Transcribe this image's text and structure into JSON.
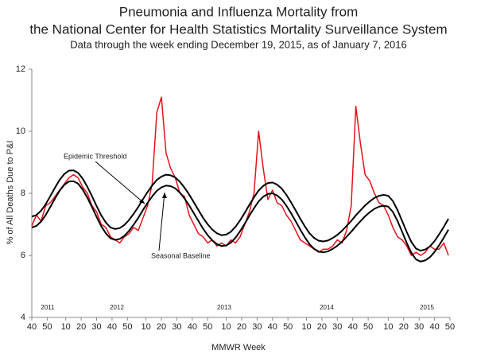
{
  "chart_data": {
    "type": "line",
    "title": [
      "Pneumonia and Influenza Mortality from",
      "the National Center for Health Statistics Mortality Surveillance System"
    ],
    "subtitle": "Data through the week ending December 19, 2015, as of January 7, 2016",
    "y_label": "% of All Deaths Due to P&I",
    "x_label": "MMWR Week",
    "xlim": [
      0,
      271
    ],
    "xticks": [
      {
        "value": 0,
        "label": "40"
      },
      {
        "value": 10,
        "label": "50"
      },
      {
        "value": 22,
        "label": "10"
      },
      {
        "value": 32,
        "label": "20"
      },
      {
        "value": 42,
        "label": "30"
      },
      {
        "value": 52,
        "label": "40"
      },
      {
        "value": 62,
        "label": "50"
      },
      {
        "value": 74,
        "label": "10"
      },
      {
        "value": 84,
        "label": "20"
      },
      {
        "value": 94,
        "label": "30"
      },
      {
        "value": 104,
        "label": "40"
      },
      {
        "value": 114,
        "label": "50"
      },
      {
        "value": 126,
        "label": "10"
      },
      {
        "value": 136,
        "label": "20"
      },
      {
        "value": 146,
        "label": "30"
      },
      {
        "value": 156,
        "label": "40"
      },
      {
        "value": 166,
        "label": "50"
      },
      {
        "value": 178,
        "label": "10"
      },
      {
        "value": 188,
        "label": "20"
      },
      {
        "value": 198,
        "label": "30"
      },
      {
        "value": 208,
        "label": "40"
      },
      {
        "value": 218,
        "label": "50"
      },
      {
        "value": 231,
        "label": "10"
      },
      {
        "value": 241,
        "label": "20"
      },
      {
        "value": 251,
        "label": "30"
      },
      {
        "value": 261,
        "label": "40"
      },
      {
        "value": 271,
        "label": "50"
      }
    ],
    "ylim": [
      4,
      12
    ],
    "yticks": [
      4,
      6,
      8,
      10,
      12
    ],
    "grid": false,
    "years": [
      "2011",
      "2012",
      "2013",
      "2014",
      "2015"
    ],
    "x": [
      0,
      3,
      6,
      9,
      12,
      15,
      18,
      21,
      24,
      27,
      30,
      33,
      36,
      39,
      42,
      45,
      48,
      51,
      54,
      57,
      60,
      63,
      66,
      69,
      72,
      75,
      78,
      81,
      84,
      87,
      90,
      93,
      96,
      99,
      102,
      105,
      108,
      111,
      114,
      117,
      120,
      123,
      126,
      129,
      132,
      135,
      138,
      141,
      144,
      147,
      150,
      153,
      156,
      159,
      162,
      165,
      168,
      171,
      174,
      177,
      180,
      183,
      186,
      189,
      192,
      195,
      198,
      201,
      204,
      207,
      210,
      213,
      216,
      219,
      222,
      225,
      228,
      231,
      234,
      237,
      240,
      243,
      246,
      249,
      252,
      255,
      258,
      261,
      264,
      267,
      270
    ],
    "series": [
      {
        "color": "#e8101a",
        "values": [
          6.95,
          7.3,
          7.1,
          7.6,
          7.7,
          7.9,
          8.1,
          8.3,
          8.5,
          8.6,
          8.5,
          8.2,
          8.0,
          7.6,
          7.4,
          7.0,
          6.9,
          6.6,
          6.5,
          6.4,
          6.6,
          6.7,
          6.9,
          6.8,
          7.2,
          7.6,
          8.3,
          10.6,
          11.1,
          9.3,
          8.8,
          8.5,
          8.0,
          7.9,
          7.3,
          7.0,
          6.7,
          6.6,
          6.4,
          6.5,
          6.3,
          6.4,
          6.3,
          6.5,
          6.4,
          6.6,
          7.0,
          7.4,
          8.0,
          10.0,
          8.8,
          7.8,
          8.1,
          7.7,
          7.6,
          7.3,
          7.1,
          6.8,
          6.5,
          6.4,
          6.3,
          6.2,
          6.1,
          6.2,
          6.2,
          6.3,
          6.5,
          6.4,
          6.8,
          7.6,
          10.8,
          9.6,
          8.6,
          8.4,
          8.0,
          7.7,
          7.6,
          7.3,
          6.9,
          6.6,
          6.5,
          6.3,
          6.0,
          6.1,
          6.0,
          6.1,
          6.3,
          6.2,
          6.2,
          6.4,
          6.0
        ]
      },
      {
        "name": "Epidemic Threshold",
        "color": "#000000",
        "values": [
          7.25,
          7.3,
          7.44,
          7.65,
          7.91,
          8.18,
          8.43,
          8.62,
          8.73,
          8.74,
          8.66,
          8.47,
          8.21,
          7.91,
          7.59,
          7.29,
          7.06,
          6.9,
          6.85,
          6.88,
          6.98,
          7.14,
          7.34,
          7.56,
          7.81,
          8.04,
          8.25,
          8.43,
          8.54,
          8.6,
          8.58,
          8.51,
          8.37,
          8.18,
          7.96,
          7.71,
          7.46,
          7.21,
          7.0,
          6.83,
          6.71,
          6.65,
          6.67,
          6.76,
          6.92,
          7.13,
          7.37,
          7.63,
          7.87,
          8.09,
          8.24,
          8.33,
          8.35,
          8.28,
          8.15,
          7.95,
          7.71,
          7.45,
          7.18,
          6.93,
          6.71,
          6.56,
          6.47,
          6.45,
          6.48,
          6.56,
          6.66,
          6.79,
          6.95,
          7.11,
          7.29,
          7.45,
          7.61,
          7.74,
          7.85,
          7.92,
          7.95,
          7.92,
          7.75,
          7.46,
          7.11,
          6.75,
          6.43,
          6.22,
          6.15,
          6.19,
          6.29,
          6.46,
          6.68,
          6.92,
          7.18
        ]
      },
      {
        "name": "Seasonal Baseline",
        "color": "#000000",
        "values": [
          6.9,
          6.95,
          7.09,
          7.3,
          7.56,
          7.83,
          8.08,
          8.27,
          8.38,
          8.39,
          8.31,
          8.12,
          7.86,
          7.56,
          7.24,
          6.94,
          6.71,
          6.55,
          6.5,
          6.53,
          6.63,
          6.79,
          6.99,
          7.21,
          7.46,
          7.69,
          7.9,
          8.08,
          8.19,
          8.25,
          8.23,
          8.16,
          8.02,
          7.83,
          7.61,
          7.36,
          7.11,
          6.86,
          6.65,
          6.48,
          6.36,
          6.3,
          6.32,
          6.41,
          6.57,
          6.78,
          7.02,
          7.28,
          7.52,
          7.74,
          7.89,
          7.98,
          8.0,
          7.93,
          7.8,
          7.6,
          7.36,
          7.1,
          6.83,
          6.58,
          6.36,
          6.21,
          6.12,
          6.1,
          6.13,
          6.21,
          6.31,
          6.44,
          6.6,
          6.76,
          6.94,
          7.1,
          7.26,
          7.39,
          7.5,
          7.57,
          7.6,
          7.57,
          7.4,
          7.11,
          6.76,
          6.4,
          6.08,
          5.87,
          5.8,
          5.84,
          5.94,
          6.11,
          6.33,
          6.57,
          6.83
        ]
      }
    ]
  }
}
